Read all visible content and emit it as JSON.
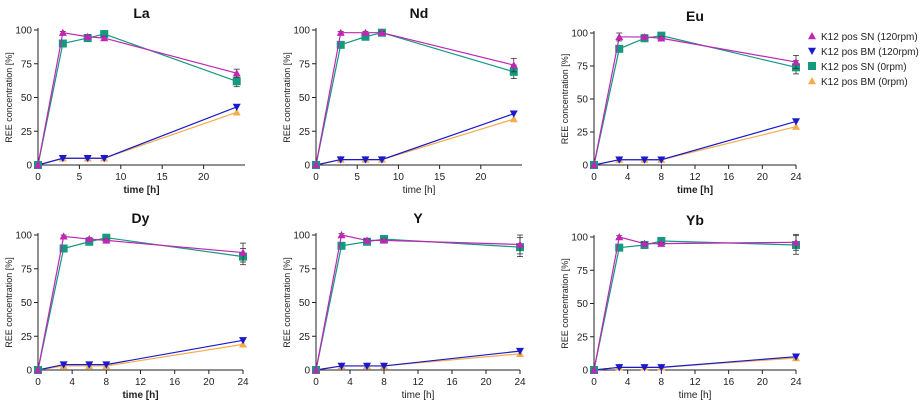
{
  "chart_data": {
    "type": "line",
    "legend": {
      "placement": "top-right",
      "entries": [
        {
          "key": "sn120",
          "label": "K12 pos SN (120rpm)",
          "color": "#c026b5",
          "marker": "triangle-up"
        },
        {
          "key": "bm120",
          "label": "K12 pos BM (120rpm)",
          "color": "#1a1acc",
          "marker": "triangle-down"
        },
        {
          "key": "sn0",
          "label": "K12 pos SN (0rpm)",
          "color": "#139a7f",
          "marker": "square"
        },
        {
          "key": "bm0",
          "label": "K12 pos BM (0rpm)",
          "color": "#f6ac4b",
          "marker": "triangle-up"
        }
      ]
    },
    "panels": [
      {
        "title": "La",
        "xlabel": "time [h]",
        "xlabel_bold": true,
        "ylabel": "REE concentration [%]",
        "xlim": [
          0,
          25
        ],
        "ylim": [
          0,
          100
        ],
        "xticks": [
          0,
          5,
          10,
          15,
          20
        ],
        "xtick_labels": [
          "0",
          "5",
          "10",
          "15",
          "20"
        ],
        "yticks": [
          0,
          25,
          50,
          75,
          100
        ],
        "ytick_labels": [
          "0",
          "25",
          "50",
          "75",
          "100"
        ],
        "x": [
          0,
          3,
          6,
          8,
          24
        ],
        "series": [
          {
            "key": "bm0",
            "values": [
              0,
              5,
              5,
              5,
              39
            ]
          },
          {
            "key": "bm120",
            "values": [
              0,
              5,
              5,
              5,
              43
            ]
          },
          {
            "key": "sn0",
            "values": [
              0,
              90,
              94,
              97,
              62
            ],
            "err": [
              0,
              1.5,
              1.5,
              2,
              4
            ]
          },
          {
            "key": "sn120",
            "values": [
              0,
              98,
              95,
              94,
              68
            ],
            "err": [
              0,
              1,
              1.5,
              1.5,
              3
            ]
          }
        ]
      },
      {
        "title": "Nd",
        "xlabel": "time [h]",
        "xlabel_bold": false,
        "ylabel": "REE concentration [%]",
        "xlim": [
          0,
          25
        ],
        "ylim": [
          0,
          100
        ],
        "xticks": [
          0,
          5,
          10,
          15,
          20
        ],
        "xtick_labels": [
          "0",
          "5",
          "10",
          "15",
          "20"
        ],
        "yticks": [
          0,
          25,
          50,
          75,
          100
        ],
        "ytick_labels": [
          "0",
          "25",
          "50",
          "75",
          "100"
        ],
        "x": [
          0,
          3,
          6,
          8,
          24
        ],
        "series": [
          {
            "key": "bm0",
            "values": [
              0,
              4,
              4,
              4,
              34
            ]
          },
          {
            "key": "bm120",
            "values": [
              0,
              4,
              4,
              4,
              38
            ]
          },
          {
            "key": "sn0",
            "values": [
              0,
              89,
              95,
              98,
              69
            ],
            "err": [
              0,
              1.5,
              1.5,
              2,
              5
            ]
          },
          {
            "key": "sn120",
            "values": [
              0,
              98,
              98,
              98,
              74
            ],
            "err": [
              0,
              1,
              1,
              1,
              5
            ]
          }
        ]
      },
      {
        "title": "Eu",
        "xlabel": "time [h]",
        "xlabel_bold": true,
        "ylabel": "REE concentration [%]",
        "xlim": [
          0,
          24
        ],
        "ylim": [
          0,
          100
        ],
        "xticks": [
          0,
          4,
          8,
          12,
          16,
          20,
          24
        ],
        "xtick_labels": [
          "0",
          "4",
          "8",
          "12",
          "16",
          "20",
          "24"
        ],
        "yticks": [
          0,
          25,
          50,
          75,
          100
        ],
        "ytick_labels": [
          "0",
          "25",
          "50",
          "75",
          "100"
        ],
        "x": [
          0,
          3,
          6,
          8,
          24
        ],
        "series": [
          {
            "key": "bm0",
            "values": [
              0,
              4,
              4,
              4,
              29
            ]
          },
          {
            "key": "bm120",
            "values": [
              0,
              4,
              4,
              4,
              33
            ]
          },
          {
            "key": "sn0",
            "values": [
              0,
              88,
              96,
              98,
              74
            ],
            "err": [
              0,
              1.5,
              1.5,
              2,
              5
            ]
          },
          {
            "key": "sn120",
            "values": [
              0,
              97,
              97,
              96,
              78
            ],
            "err": [
              0,
              3,
              1.5,
              1.5,
              5
            ]
          }
        ]
      },
      {
        "title": "Dy",
        "xlabel": "time [h]",
        "xlabel_bold": true,
        "ylabel": "REE concentration [%]",
        "xlim": [
          0,
          24
        ],
        "ylim": [
          0,
          100
        ],
        "xticks": [
          0,
          4,
          8,
          12,
          16,
          20,
          24
        ],
        "xtick_labels": [
          "0",
          "4",
          "8",
          "12",
          "16",
          "20",
          "24"
        ],
        "yticks": [
          0,
          25,
          50,
          75,
          100
        ],
        "ytick_labels": [
          "0",
          "25",
          "50",
          "75",
          "100"
        ],
        "x": [
          0,
          3,
          6,
          8,
          24
        ],
        "series": [
          {
            "key": "bm0",
            "values": [
              0,
              3,
              3,
              3,
              19
            ]
          },
          {
            "key": "bm120",
            "values": [
              0,
              4,
              4,
              4,
              22
            ]
          },
          {
            "key": "sn0",
            "values": [
              0,
              90,
              95,
              98,
              84
            ],
            "err": [
              0,
              2,
              1.5,
              1.5,
              6
            ]
          },
          {
            "key": "sn120",
            "values": [
              0,
              99,
              97,
              96,
              87
            ],
            "err": [
              0,
              1,
              1,
              1,
              7
            ]
          }
        ]
      },
      {
        "title": "Y",
        "xlabel": "time [h]",
        "xlabel_bold": false,
        "ylabel": "REE concentration [%]",
        "xlim": [
          0,
          24
        ],
        "ylim": [
          0,
          100
        ],
        "xticks": [
          0,
          4,
          8,
          12,
          16,
          20,
          24
        ],
        "xtick_labels": [
          "0",
          "4",
          "8",
          "12",
          "16",
          "20",
          "24"
        ],
        "yticks": [
          0,
          25,
          50,
          75,
          100
        ],
        "ytick_labels": [
          "0",
          "25",
          "50",
          "75",
          "100"
        ],
        "x": [
          0,
          3,
          6,
          8,
          24
        ],
        "series": [
          {
            "key": "bm0",
            "values": [
              0,
              3,
              3,
              3,
              12
            ]
          },
          {
            "key": "bm120",
            "values": [
              0,
              3,
              3,
              3,
              14
            ]
          },
          {
            "key": "sn0",
            "values": [
              0,
              92,
              95,
              97,
              91
            ],
            "err": [
              0,
              2,
              1.5,
              1.5,
              7
            ]
          },
          {
            "key": "sn120",
            "values": [
              0,
              100,
              96,
              96,
              93
            ],
            "err": [
              0,
              1,
              1,
              1,
              7
            ]
          }
        ]
      },
      {
        "title": "Yb",
        "xlabel": "time [h]",
        "xlabel_bold": false,
        "ylabel": "REE concentration [%]",
        "xlim": [
          0,
          24
        ],
        "ylim": [
          0,
          100
        ],
        "xticks": [
          0,
          4,
          8,
          12,
          16,
          20,
          24
        ],
        "xtick_labels": [
          "0",
          "4",
          "8",
          "12",
          "16",
          "20",
          "24"
        ],
        "yticks": [
          0,
          25,
          50,
          75,
          100
        ],
        "ytick_labels": [
          "0",
          "25",
          "50",
          "75",
          "100"
        ],
        "x": [
          0,
          3,
          6,
          8,
          24
        ],
        "series": [
          {
            "key": "bm0",
            "values": [
              0,
              2,
              2,
              2,
              9
            ]
          },
          {
            "key": "bm120",
            "values": [
              0,
              2,
              2,
              2,
              10
            ]
          },
          {
            "key": "sn0",
            "values": [
              0,
              92,
              94,
              97,
              94
            ],
            "err": [
              0,
              2,
              1.5,
              1.5,
              7
            ]
          },
          {
            "key": "sn120",
            "values": [
              0,
              100,
              95,
              95,
              96
            ],
            "err": [
              0,
              1,
              1,
              1,
              6
            ]
          }
        ]
      }
    ]
  }
}
